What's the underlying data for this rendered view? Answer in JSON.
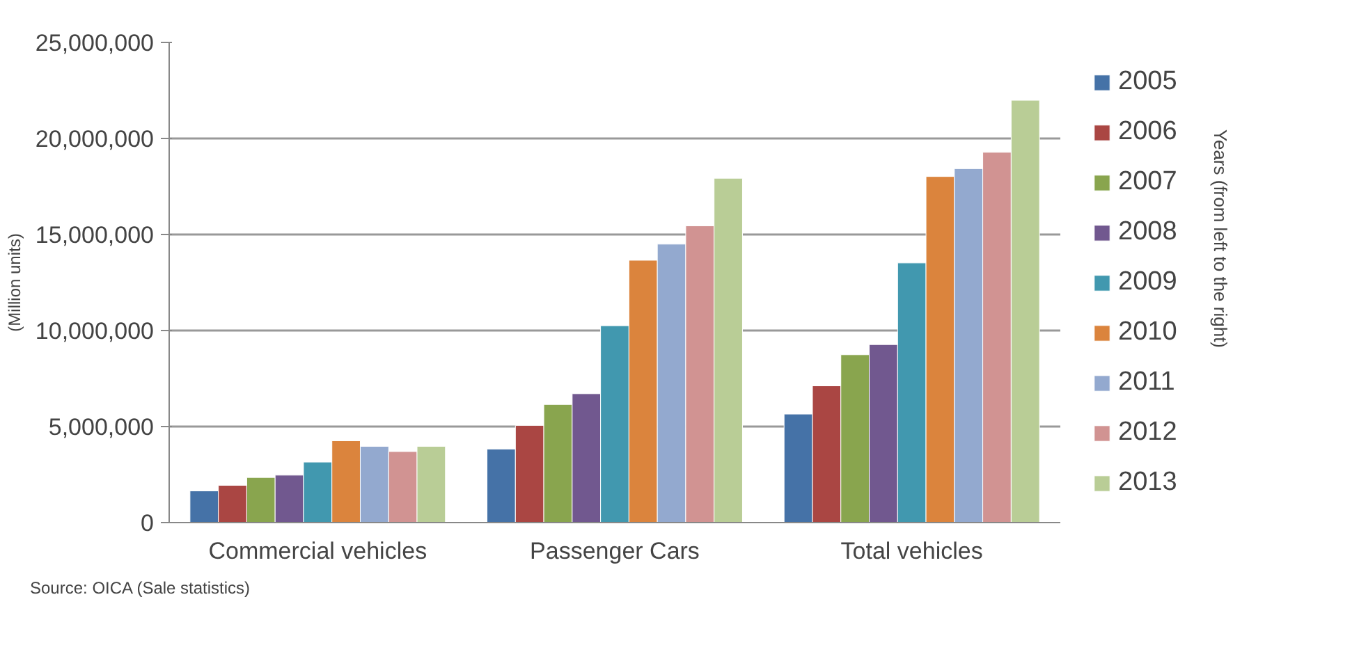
{
  "chart_data": {
    "type": "bar",
    "ylabel": "(Million units)",
    "legend_title": "Years (from left to the right)",
    "categories": [
      "Commercial vehicles",
      "Passenger Cars",
      "Total vehicles"
    ],
    "series": [
      {
        "name": "2005",
        "color": "#4572a7",
        "values": [
          1650000,
          3830000,
          5650000
        ]
      },
      {
        "name": "2006",
        "color": "#aa4643",
        "values": [
          1940000,
          5060000,
          7120000
        ]
      },
      {
        "name": "2007",
        "color": "#89a54e",
        "values": [
          2350000,
          6150000,
          8740000
        ]
      },
      {
        "name": "2008",
        "color": "#71588f",
        "values": [
          2470000,
          6710000,
          9270000
        ]
      },
      {
        "name": "2009",
        "color": "#4198af",
        "values": [
          3150000,
          10250000,
          13520000
        ]
      },
      {
        "name": "2010",
        "color": "#db843d",
        "values": [
          4260000,
          13660000,
          18020000
        ]
      },
      {
        "name": "2011",
        "color": "#93a9cf",
        "values": [
          3970000,
          14500000,
          18430000
        ]
      },
      {
        "name": "2012",
        "color": "#d19392",
        "values": [
          3700000,
          15450000,
          19280000
        ]
      },
      {
        "name": "2013",
        "color": "#b9cd96",
        "values": [
          3970000,
          17930000,
          21990000
        ]
      }
    ],
    "ylim": [
      0,
      25000000
    ],
    "yticks": [
      {
        "value": 0,
        "label": "0"
      },
      {
        "value": 5000000,
        "label": "5,000,000"
      },
      {
        "value": 10000000,
        "label": "10,000,000"
      },
      {
        "value": 15000000,
        "label": "15,000,000"
      },
      {
        "value": 20000000,
        "label": "20,000,000"
      },
      {
        "value": 25000000,
        "label": "25,000,000"
      }
    ],
    "grid": "y",
    "legend": "right",
    "annotations": [
      "Source: OICA (Sale statistics)"
    ]
  }
}
